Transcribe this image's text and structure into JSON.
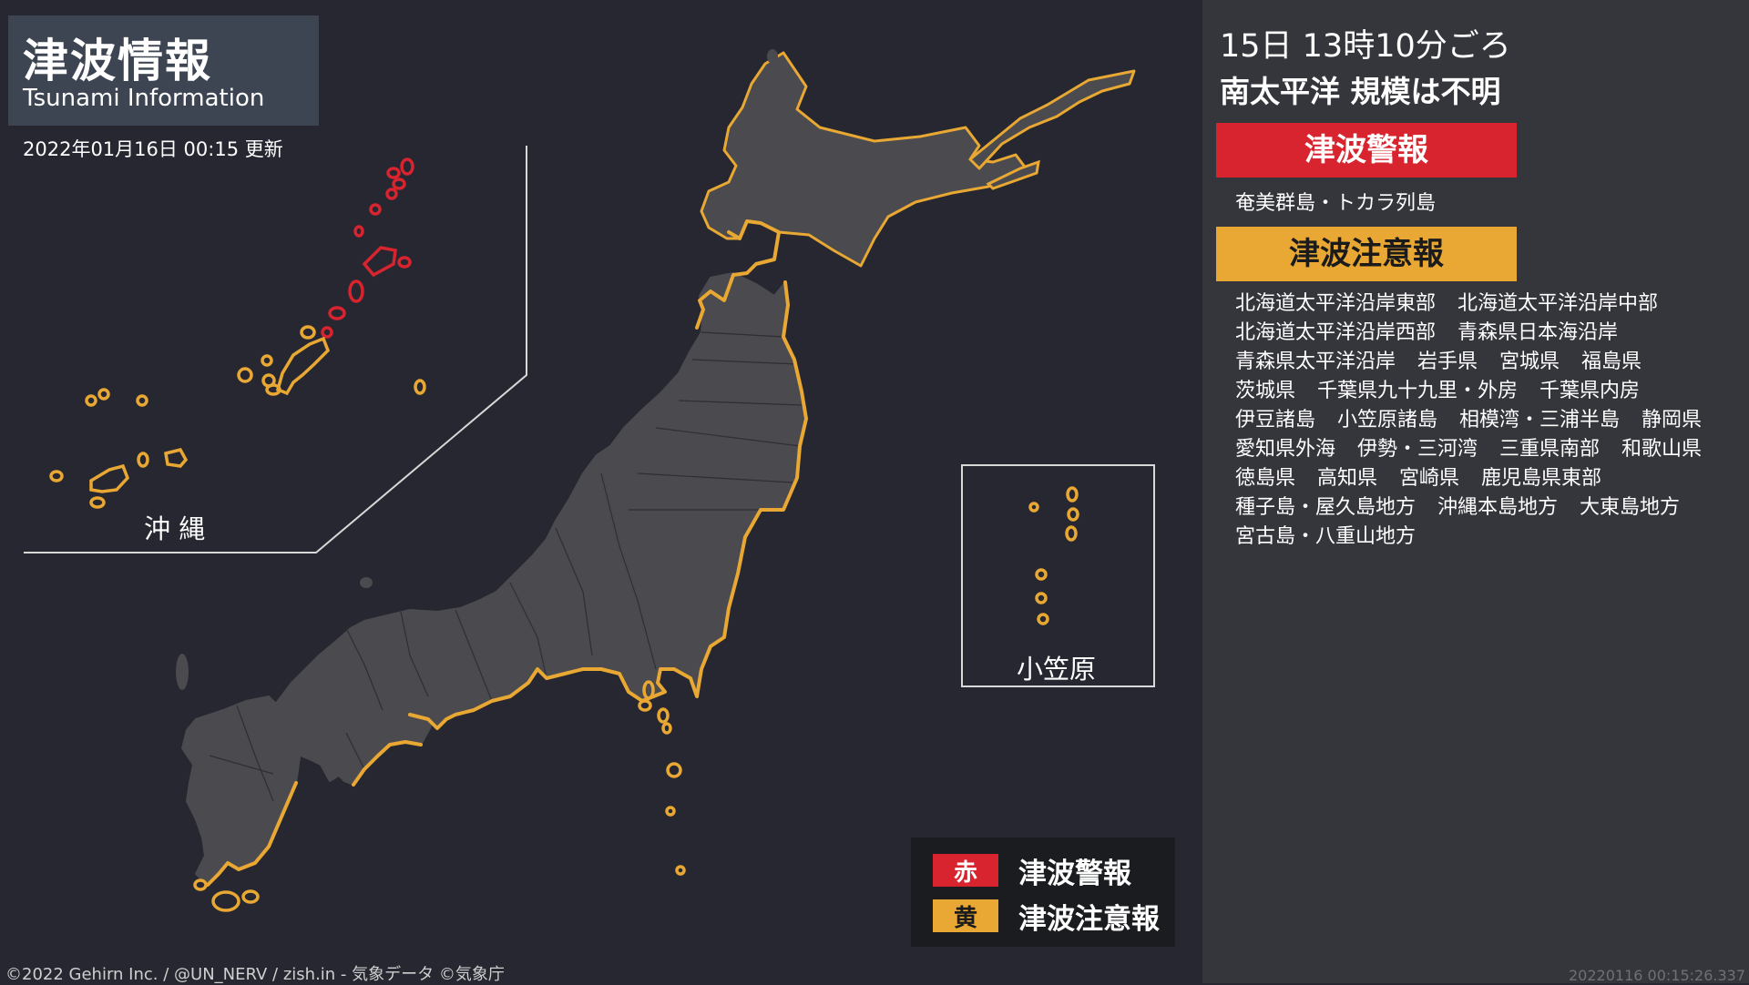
{
  "header": {
    "title_jp": "津波情報",
    "title_en": "Tsunami Information",
    "updated": "2022年01月16日 00:15 更新"
  },
  "insets": {
    "okinawa_label": "沖 縄",
    "ogasawara_label": "小笠原"
  },
  "event": {
    "time": "15日 13時10分ごろ",
    "place": "南太平洋 規模は不明"
  },
  "warning": {
    "label": "津波警報",
    "areas": "奄美群島・トカラ列島"
  },
  "advisory": {
    "label": "津波注意報",
    "areas": [
      "北海道太平洋沿岸東部",
      "北海道太平洋沿岸中部",
      "北海道太平洋沿岸西部",
      "青森県日本海沿岸",
      "青森県太平洋沿岸",
      "岩手県",
      "宮城県",
      "福島県",
      "茨城県",
      "千葉県九十九里・外房",
      "千葉県内房",
      "伊豆諸島",
      "小笠原諸島",
      "相模湾・三浦半島",
      "静岡県",
      "愛知県外海",
      "伊勢・三河湾",
      "三重県南部",
      "和歌山県",
      "徳島県",
      "高知県",
      "宮崎県",
      "鹿児島県東部",
      "種子島・屋久島地方",
      "沖縄本島地方",
      "大東島地方",
      "宮古島・八重山地方"
    ]
  },
  "legend": {
    "warning_key": "赤",
    "warning_label": "津波警報",
    "advisory_key": "黄",
    "advisory_label": "津波注意報"
  },
  "footer": {
    "credits": "©2022 Gehirn Inc. / @UN_NERV / zish.in - 気象データ ©気象庁",
    "timestamp": "20220116 00:15:26.337"
  },
  "colors": {
    "background": "#262730",
    "land": "#4a4a4f",
    "warning": "#d7242e",
    "advisory": "#e8a833",
    "panel": "#35363c"
  }
}
